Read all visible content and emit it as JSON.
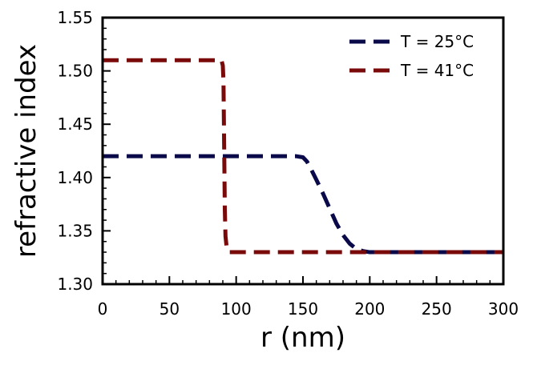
{
  "chart_data": {
    "type": "line",
    "title": "",
    "xlabel": "r (nm)",
    "ylabel": "refractive index",
    "xlim": [
      0,
      300
    ],
    "ylim": [
      1.3,
      1.55
    ],
    "xticks": [
      0,
      50,
      100,
      150,
      200,
      250,
      300
    ],
    "xtick_labels": [
      "0",
      "50",
      "100",
      "150",
      "200",
      "250",
      "300"
    ],
    "yticks": [
      1.3,
      1.35,
      1.4,
      1.45,
      1.5,
      1.55
    ],
    "ytick_labels": [
      "1.30",
      "1.35",
      "1.40",
      "1.45",
      "1.50",
      "1.55"
    ],
    "grid": false,
    "legend_position": "top-right",
    "series": [
      {
        "name": "T = 25°C",
        "color": "#0a0a4a",
        "style": "dashed",
        "x": [
          0,
          145,
          150,
          153,
          156,
          160,
          165,
          170,
          175,
          180,
          185,
          190,
          195,
          200,
          300
        ],
        "y": [
          1.42,
          1.42,
          1.419,
          1.415,
          1.408,
          1.398,
          1.385,
          1.371,
          1.357,
          1.346,
          1.338,
          1.333,
          1.331,
          1.33,
          1.33
        ]
      },
      {
        "name": "T = 41°C",
        "color": "#7a0a0a",
        "style": "dashed",
        "x": [
          0,
          89,
          90,
          90.5,
          91,
          91.5,
          92,
          93,
          95,
          300
        ],
        "y": [
          1.51,
          1.51,
          1.505,
          1.49,
          1.43,
          1.37,
          1.345,
          1.333,
          1.33,
          1.33
        ]
      }
    ]
  }
}
